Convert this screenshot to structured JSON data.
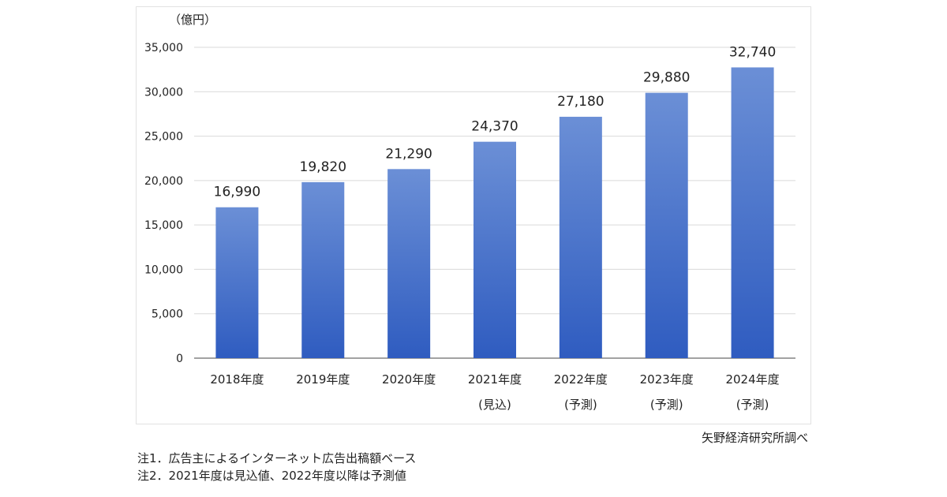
{
  "chart_data": {
    "type": "bar",
    "unit_label": "（億円）",
    "categories": [
      [
        "2018年度"
      ],
      [
        "2019年度"
      ],
      [
        "2020年度"
      ],
      [
        "2021年度",
        "(見込)"
      ],
      [
        "2022年度",
        "(予測)"
      ],
      [
        "2023年度",
        "(予測)"
      ],
      [
        "2024年度",
        "(予測)"
      ]
    ],
    "values": [
      16990,
      19820,
      21290,
      24370,
      27180,
      29880,
      32740
    ],
    "value_labels": [
      "16,990",
      "19,820",
      "21,290",
      "24,370",
      "27,180",
      "29,880",
      "32,740"
    ],
    "ylim": [
      0,
      35000
    ],
    "y_ticks": [
      {
        "value": 0,
        "label": "0"
      },
      {
        "value": 5000,
        "label": "5,000"
      },
      {
        "value": 10000,
        "label": "10,000"
      },
      {
        "value": 15000,
        "label": "15,000"
      },
      {
        "value": 20000,
        "label": "20,000"
      },
      {
        "value": 25000,
        "label": "25,000"
      },
      {
        "value": 30000,
        "label": "30,000"
      },
      {
        "value": 35000,
        "label": "35,000"
      }
    ],
    "grid": true,
    "bar_color_top": "#6b8fd6",
    "bar_color_bottom": "#2f5cc0"
  },
  "source": "矢野経済研究所調べ",
  "notes": [
    "注1．広告主によるインターネット広告出稿額ベース",
    "注2．2021年度は見込値、2022年度以降は予測値"
  ]
}
